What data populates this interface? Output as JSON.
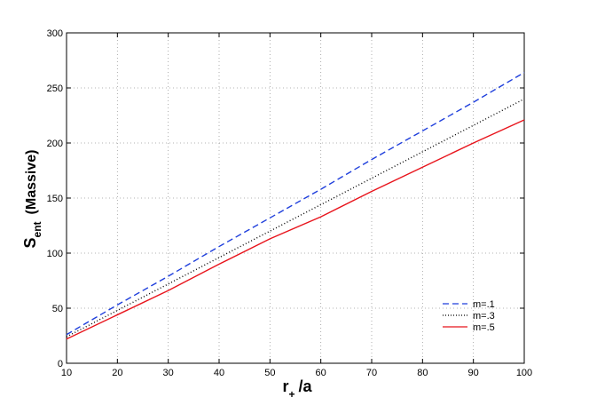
{
  "chart_data": {
    "type": "line",
    "xlabel": {
      "main": "r",
      "sub": "+",
      "suffix": "/a"
    },
    "ylabel": {
      "main": "S",
      "sub": "ent",
      "suffix": "(Massive)"
    },
    "xlim": [
      10,
      100
    ],
    "ylim": [
      0,
      300
    ],
    "xticks": [
      10,
      20,
      30,
      40,
      50,
      60,
      70,
      80,
      90,
      100
    ],
    "yticks": [
      0,
      50,
      100,
      150,
      200,
      250,
      300
    ],
    "grid": true,
    "legend_position": "bottom-right",
    "series": [
      {
        "name": "m=.1",
        "color": "#1f3fdc",
        "style": "dashed",
        "x": [
          10,
          20,
          30,
          40,
          50,
          60,
          70,
          80,
          90,
          100
        ],
        "y": [
          26,
          53,
          79,
          106,
          132,
          158,
          185,
          211,
          237,
          264
        ]
      },
      {
        "name": "m=.3",
        "color": "#000000",
        "style": "dotted",
        "x": [
          10,
          20,
          30,
          40,
          50,
          60,
          70,
          80,
          90,
          100
        ],
        "y": [
          24,
          48,
          72,
          96,
          120,
          144,
          168,
          192,
          216,
          240
        ]
      },
      {
        "name": "m=.5",
        "color": "#e8141c",
        "style": "solid",
        "x": [
          10,
          20,
          30,
          40,
          50,
          60,
          70,
          80,
          90,
          100
        ],
        "y": [
          22,
          44,
          66,
          90,
          113,
          133,
          156,
          178,
          200,
          221
        ]
      }
    ]
  }
}
